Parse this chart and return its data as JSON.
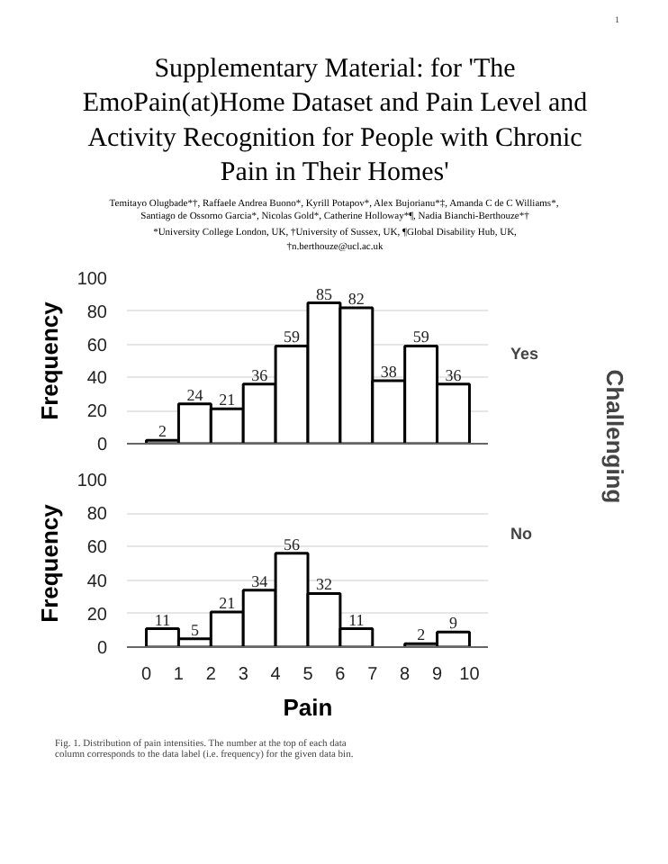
{
  "chart_data": [
    {
      "type": "histogram",
      "title": "Supplementary Material: for 'The EmoPain(at)Home Dataset and Pain Level and Activity Recognition for People with Chronic Pain in Their Homes'",
      "annotations": [
        "1",
        "Temitayo Olugbade*†, Raffaele Andrea Buono*, Kyrill Potapov*, Alex Bujorianu*‡, Amanda C de C Williams*, Santiago de Ossorno Garcia*, Nicolas Gold*, Catherine Holloway*¶, Nadia Bianchi-Berthouze*†",
        "*University College London, UK, †University of Sussex, UK, ¶Global Disability Hub, UK,",
        "†n.berthouze@ucl.ac.uk",
        "Yes",
        "Challenging"
      ],
      "ylabel": "Frequency",
      "bins": [
        0,
        1,
        2,
        3,
        4,
        5,
        6,
        7,
        8,
        9,
        10
      ],
      "values": [
        2,
        24,
        21,
        36,
        59,
        85,
        82,
        38,
        59,
        36
      ],
      "color": "#ffffff",
      "xlim": [
        -0.6,
        10.6
      ],
      "ylim": [
        0,
        100
      ],
      "yticks": [
        0,
        20,
        40,
        60,
        80,
        100
      ],
      "xticks": [
        0,
        1,
        2,
        3,
        4,
        5,
        6,
        7,
        8,
        9,
        10
      ],
      "tick_labels": "y",
      "grid": "y",
      "data_labels": true
    },
    {
      "type": "histogram",
      "annotations": [
        "No",
        "Fig. 1.  Distribution of pain intensities. The number at the top of each data column corresponds to the data label (i.e. frequency) for the given data bin."
      ],
      "xlabel": "Pain",
      "ylabel": "Frequency",
      "bins": [
        0,
        1,
        2,
        3,
        4,
        5,
        6,
        7,
        8,
        9,
        10
      ],
      "values": [
        11,
        5,
        21,
        34,
        56,
        32,
        11,
        0,
        2,
        9
      ],
      "value_labels": [
        "11",
        "5",
        "21",
        "34",
        "56",
        "32",
        "11",
        null,
        "2",
        "9"
      ],
      "color": "#ffffff",
      "xlim": [
        -0.6,
        10.6
      ],
      "ylim": [
        0,
        100
      ],
      "yticks": [
        0,
        20,
        40,
        60,
        80,
        100
      ],
      "xticks": [
        0,
        1,
        2,
        3,
        4,
        5,
        6,
        7,
        8,
        9,
        10
      ],
      "grid": "y"
    }
  ]
}
